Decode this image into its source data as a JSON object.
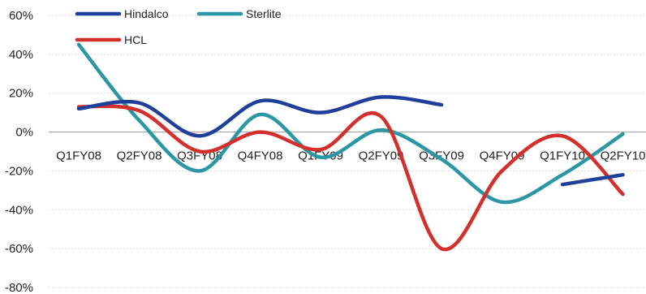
{
  "chart_data": {
    "type": "line",
    "title": "",
    "xlabel": "",
    "ylabel": "",
    "categories": [
      "Q1FY08",
      "Q2FY08",
      "Q3FY08",
      "Q4FY08",
      "Q1FY09",
      "Q2FY09",
      "Q3FY09",
      "Q4FY09",
      "Q1FY10",
      "Q2FY10"
    ],
    "y_ticks": [
      "60%",
      "40%",
      "20%",
      "0%",
      "-20%",
      "-40%",
      "-60%",
      "-80%"
    ],
    "ylim": [
      -80,
      60
    ],
    "y_unit": "%",
    "grid": true,
    "legend_position": "top",
    "series": [
      {
        "name": "Hindalco",
        "color": "#1f3f9b",
        "values": [
          12,
          15,
          -2,
          16,
          10,
          18,
          14,
          null,
          -27,
          -22
        ]
      },
      {
        "name": "Sterlite",
        "color": "#2b97a4",
        "values": [
          45,
          6,
          -20,
          9,
          -13,
          1,
          -14,
          -36,
          -22,
          -1
        ]
      },
      {
        "name": "HCL",
        "color": "#d3302c",
        "values": [
          13,
          11,
          -10,
          0,
          -9,
          8,
          -60,
          -20,
          -2,
          -32
        ]
      }
    ]
  }
}
